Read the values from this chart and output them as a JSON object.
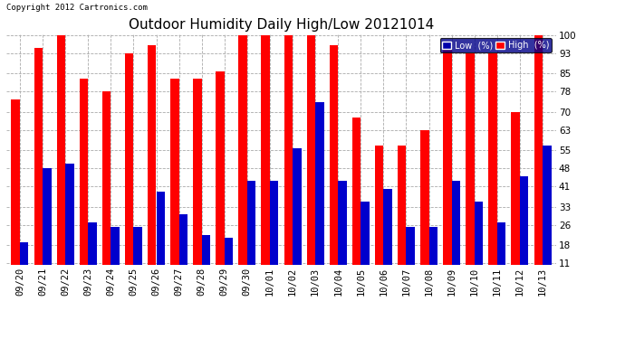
{
  "title": "Outdoor Humidity Daily High/Low 20121014",
  "copyright": "Copyright 2012 Cartronics.com",
  "categories": [
    "09/20",
    "09/21",
    "09/22",
    "09/23",
    "09/24",
    "09/25",
    "09/26",
    "09/27",
    "09/28",
    "09/29",
    "09/30",
    "10/01",
    "10/02",
    "10/03",
    "10/04",
    "10/05",
    "10/06",
    "10/07",
    "10/08",
    "10/09",
    "10/10",
    "10/11",
    "10/12",
    "10/13"
  ],
  "high_values": [
    75,
    95,
    100,
    83,
    78,
    93,
    96,
    83,
    83,
    86,
    100,
    100,
    100,
    100,
    96,
    68,
    57,
    57,
    63,
    95,
    93,
    93,
    70,
    100
  ],
  "low_values": [
    19,
    48,
    50,
    27,
    25,
    25,
    39,
    30,
    22,
    21,
    43,
    43,
    56,
    74,
    43,
    35,
    40,
    25,
    25,
    43,
    35,
    27,
    45,
    57
  ],
  "high_color": "#ff0000",
  "low_color": "#0000cc",
  "bg_color": "#ffffff",
  "grid_color": "#aaaaaa",
  "yticks": [
    11,
    18,
    26,
    33,
    41,
    48,
    55,
    63,
    70,
    78,
    85,
    93,
    100
  ],
  "ymin": 11,
  "ymax": 100,
  "title_fontsize": 11,
  "tick_fontsize": 7.5,
  "legend_label_low": "Low  (%)",
  "legend_label_high": "High  (%)",
  "legend_low_bg": "#0000aa",
  "legend_high_bg": "#ff0000"
}
